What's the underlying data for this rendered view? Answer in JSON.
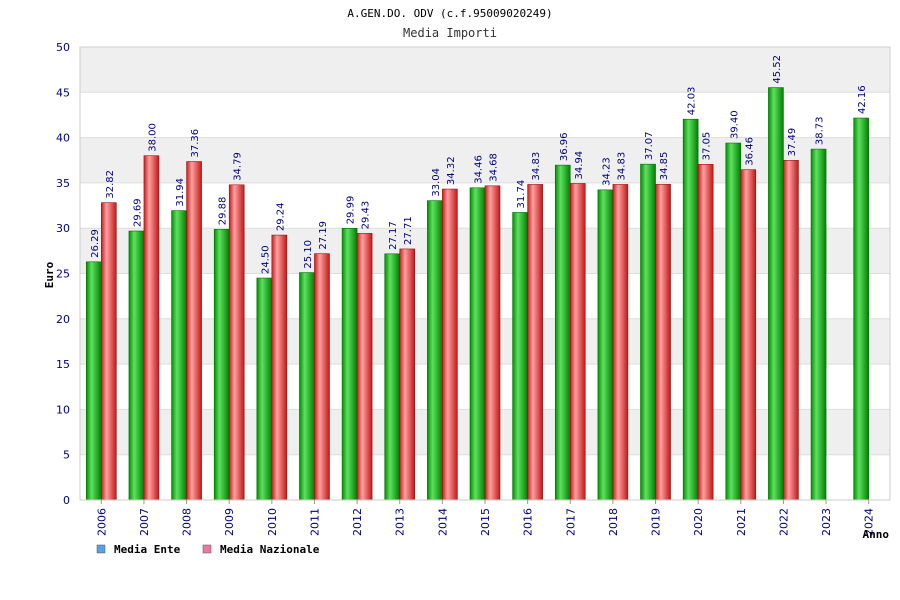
{
  "chart_data": {
    "type": "bar",
    "title": "A.GEN.DO. ODV (c.f.95009020249)",
    "subtitle": "Media Importi",
    "xlabel": "Anno",
    "ylabel": "Euro",
    "ylim": [
      0,
      50
    ],
    "yticks": [
      "0",
      "5",
      "10",
      "15",
      "20",
      "25",
      "30",
      "35",
      "40",
      "45",
      "50"
    ],
    "grid": true,
    "legend_position": "bottom-left",
    "categories": [
      "2006",
      "2007",
      "2008",
      "2009",
      "2010",
      "2011",
      "2012",
      "2013",
      "2014",
      "2015",
      "2016",
      "2017",
      "2018",
      "2019",
      "2020",
      "2021",
      "2022",
      "2023",
      "2024"
    ],
    "series": [
      {
        "name": "Media Ente",
        "color": "#00b000",
        "legend_color": "#5aa0e8",
        "values": [
          26.29,
          29.69,
          31.94,
          29.88,
          24.5,
          25.1,
          29.99,
          27.17,
          33.04,
          34.46,
          31.74,
          36.96,
          34.23,
          37.07,
          42.03,
          39.4,
          45.52,
          38.73,
          42.16
        ],
        "labels": [
          "26.29",
          "29.69",
          "31.94",
          "29.88",
          "24.50",
          "25.10",
          "29.99",
          "27.17",
          "33.04",
          "34.46",
          "31.74",
          "36.96",
          "34.23",
          "37.07",
          "42.03",
          "39.40",
          "45.52",
          "38.73",
          "42.16"
        ]
      },
      {
        "name": "Media Nazionale",
        "color": "#e03030",
        "legend_color": "#e87aa0",
        "values": [
          32.82,
          38.0,
          37.36,
          34.79,
          29.24,
          27.19,
          29.43,
          27.71,
          34.32,
          34.68,
          34.83,
          34.94,
          34.83,
          34.85,
          37.05,
          36.46,
          37.49,
          null,
          null
        ],
        "labels": [
          "32.82",
          "38.00",
          "37.36",
          "34.79",
          "29.24",
          "27.19",
          "29.43",
          "27.71",
          "34.32",
          "34.68",
          "34.83",
          "34.94",
          "34.83",
          "34.85",
          "37.05",
          "36.46",
          "37.49",
          null,
          null
        ]
      }
    ],
    "colors": {
      "band_shaded": "#efefef",
      "band_plain": "#ffffff",
      "gridline": "#dddddd",
      "axis_text": "#000080"
    }
  }
}
